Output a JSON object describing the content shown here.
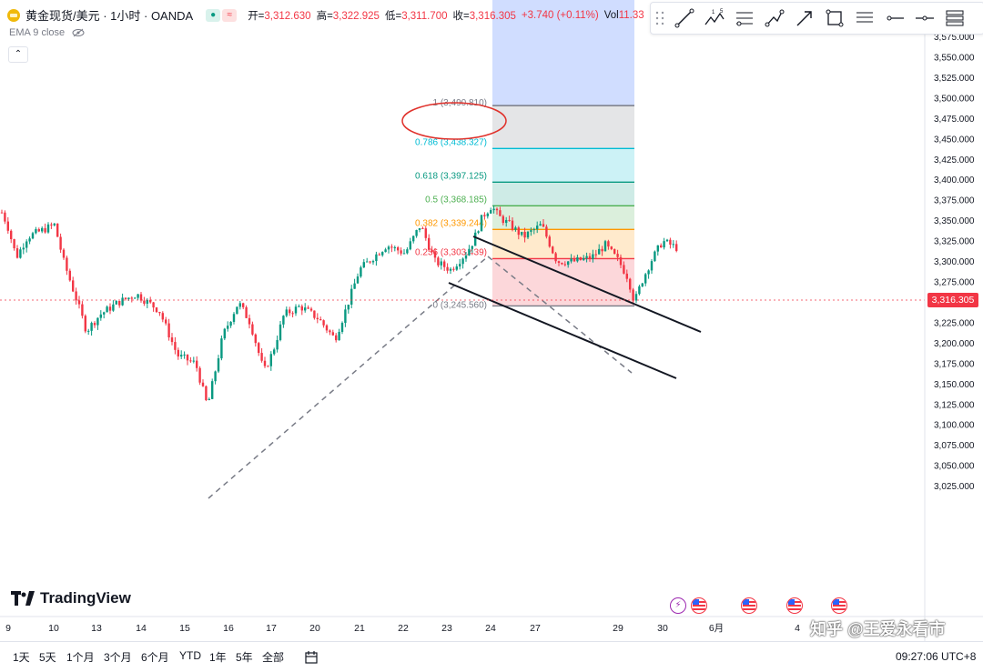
{
  "header": {
    "symbol": "黄金现货/美元 · 1小时 · OANDA",
    "ohlc": [
      {
        "label": "开=",
        "value": "3,312.630"
      },
      {
        "label": "高=",
        "value": "3,322.925"
      },
      {
        "label": "低=",
        "value": "3,311.700"
      },
      {
        "label": "收=",
        "value": "3,316.305"
      }
    ],
    "change": "+3.740 (+0.11%)",
    "volume_label": "Vol",
    "volume_value": "11.33",
    "indicator": "EMA 9 close",
    "collapse_icon": "chevron-up-icon"
  },
  "toolbar": {
    "icons": [
      "trend-line-icon",
      "elliott-wave-icon",
      "fib-retracement-icon",
      "path-icon",
      "arrow-icon",
      "rectangle-icon",
      "text-lines-icon",
      "horizontal-ray-icon",
      "horizontal-line-icon",
      "fib-channel-icon"
    ]
  },
  "price_axis": {
    "labels": [
      "3,575.000",
      "3,550.000",
      "3,525.000",
      "3,500.000",
      "3,475.000",
      "3,450.000",
      "3,425.000",
      "3,400.000",
      "3,375.000",
      "3,350.000",
      "3,325.000",
      "3,300.000",
      "3,275.000",
      "3,250.000",
      "3,225.000",
      "3,200.000",
      "3,175.000",
      "3,150.000",
      "3,125.000",
      "3,100.000",
      "3,075.000",
      "3,050.000",
      "3,025.000"
    ],
    "current_price": "3,316.305"
  },
  "time_axis": {
    "labels": [
      "9",
      "10",
      "13",
      "14",
      "15",
      "16",
      "17",
      "20",
      "21",
      "22",
      "23",
      "24",
      "27",
      "29",
      "30",
      "6月",
      "4"
    ]
  },
  "fibonacci": {
    "levels": [
      {
        "ratio_label": "1 (3,490.810)",
        "price": 3490.81,
        "color": "#787b86"
      },
      {
        "ratio_label": "0.786 (3,438.327)",
        "price": 3438.327,
        "color": "#00bcd4"
      },
      {
        "ratio_label": "0.618 (3,397.125)",
        "price": 3397.125,
        "color": "#089981"
      },
      {
        "ratio_label": "0.5 (3,368.185)",
        "price": 3368.185,
        "color": "#4caf50"
      },
      {
        "ratio_label": "0.382 (3,339.244)",
        "price": 3339.244,
        "color": "#ff9800"
      },
      {
        "ratio_label": "0.236 (3,303.439)",
        "price": 3303.439,
        "color": "#f23645"
      },
      {
        "ratio_label": "0 (3,245.560)",
        "price": 3245.56,
        "color": "#787b86"
      }
    ],
    "highlight": "1 (3,490.810)"
  },
  "branding": {
    "logo_text": "TradingView"
  },
  "bottom": {
    "ranges": [
      "1天",
      "5天",
      "1个月",
      "3个月",
      "6个月",
      "YTD",
      "1年",
      "5年",
      "全部"
    ],
    "compare_icon": "calendar-range-icon",
    "clock": "09:27:06 UTC+8"
  },
  "watermark": "知乎 @王爱永看市",
  "colors": {
    "up": "#089981",
    "down": "#f23645",
    "accent": "#2962ff"
  }
}
